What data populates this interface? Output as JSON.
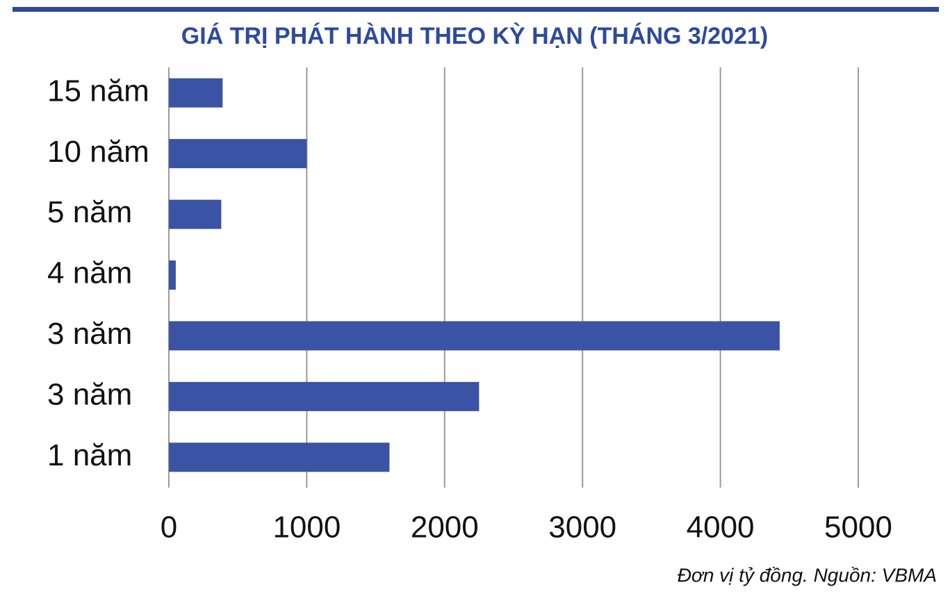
{
  "chart_data": {
    "type": "bar",
    "orientation": "horizontal",
    "title": "GIÁ TRỊ PHÁT HÀNH THEO KỲ HẠN (THÁNG 3/2021)",
    "categories": [
      "15 năm",
      "10 năm",
      "5 năm",
      "4 năm",
      "3 năm",
      "3 năm",
      "1 năm"
    ],
    "values": [
      390,
      1000,
      380,
      50,
      4430,
      2250,
      1600
    ],
    "color": "#3a53a4",
    "xlim": [
      0,
      5000
    ],
    "xticks": [
      0,
      1000,
      2000,
      3000,
      4000,
      5000
    ],
    "grid": true,
    "note": "Đơn vị tỷ đồng. Nguồn: VBMA"
  }
}
